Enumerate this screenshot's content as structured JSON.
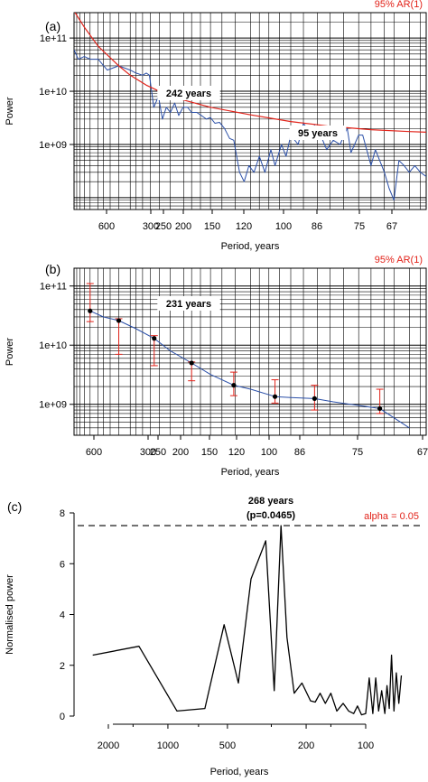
{
  "colors": {
    "spectrum": "#2a4fa8",
    "ar1": "#e2231a",
    "grid": "#000000",
    "errorbar": "#e2231a",
    "point": "#000000",
    "line_c": "#000000"
  },
  "chart_data": [
    {
      "panel_label": "(a)",
      "type": "line",
      "legend": "95% AR(1)",
      "ylabel": "Power",
      "xlabel": "Period, years",
      "y_scale": "log",
      "ylim": [
        60000000.0,
        300000000000.0
      ],
      "x_axis": "frequency (1/period), period labels",
      "x_ticks": [
        "600",
        "300",
        "250",
        "200",
        "150",
        "120",
        "100",
        "86",
        "75",
        "67"
      ],
      "y_ticks": [
        "1e+09",
        "1e+10",
        "1e+11"
      ],
      "annotations": [
        "242 years",
        "95 years"
      ],
      "series": [
        {
          "name": "spectrum",
          "x": [
            1000,
            850,
            700,
            600,
            500,
            420,
            350,
            300,
            280,
            260,
            250,
            242,
            232,
            222,
            214,
            207,
            200,
            193,
            187,
            181,
            175,
            170,
            164,
            159,
            154,
            150,
            146,
            142,
            138,
            134,
            131,
            127,
            124,
            121,
            118,
            115,
            112,
            109,
            107,
            104,
            102,
            100,
            97,
            95,
            93,
            91,
            89,
            87,
            85,
            83,
            81,
            80,
            78,
            77,
            75,
            74,
            72,
            71,
            70,
            69,
            68,
            67,
            66,
            65,
            64
          ],
          "y": [
            60000000000.0,
            40000000000.0,
            45000000000.0,
            40000000000.0,
            40000000000.0,
            25000000000.0,
            30000000000.0,
            25000000000.0,
            22000000000.0,
            20000000000.0,
            22000000000.0,
            20000000000.0,
            5000000000.0,
            8000000000.0,
            3000000000.0,
            5000000000.0,
            4000000000.0,
            6000000000.0,
            3500000000.0,
            5000000000.0,
            5000000000.0,
            4000000000.0,
            4000000000.0,
            3500000000.0,
            3000000000.0,
            3200000000.0,
            2500000000.0,
            2600000000.0,
            2000000000.0,
            1300000000.0,
            1200000000.0,
            300000000.0,
            200000000.0,
            400000000.0,
            300000000.0,
            600000000.0,
            300000000.0,
            800000000.0,
            400000000.0,
            1000000000.0,
            600000000.0,
            1500000000.0,
            1000000000.0,
            2500000000.0,
            1800000000.0,
            2300000000.0,
            1500000000.0,
            800000000.0,
            1200000000.0,
            1000000000.0,
            2000000000.0,
            700000000.0,
            1500000000.0,
            1500000000.0,
            400000000.0,
            800000000.0,
            300000000.0,
            150000000.0,
            90000000.0,
            500000000.0,
            400000000.0,
            300000000.0,
            400000000.0,
            300000000.0,
            250000000.0
          ]
        },
        {
          "name": "95% AR(1)",
          "x": [
            1000,
            700,
            500,
            350,
            300,
            250,
            200,
            150,
            120,
            100,
            86,
            75,
            67,
            64
          ],
          "y": [
            320000000000.0,
            160000000000.0,
            70000000000.0,
            30000000000.0,
            20000000000.0,
            13000000000.0,
            8000000000.0,
            5000000000.0,
            3600000000.0,
            2700000000.0,
            2200000000.0,
            1900000000.0,
            1750000000.0,
            1700000000.0
          ]
        }
      ]
    },
    {
      "panel_label": "(b)",
      "type": "line",
      "legend": "95% AR(1)",
      "ylabel": "Power",
      "xlabel": "Period, years",
      "y_scale": "log",
      "ylim": [
        300000000.0,
        200000000000.0
      ],
      "x_ticks": [
        "600",
        "300",
        "250",
        "200",
        "150",
        "120",
        "100",
        "86",
        "75",
        "67"
      ],
      "y_ticks": [
        "1e+09",
        "1e+10",
        "1e+11"
      ],
      "annotations": [
        "231 years"
      ],
      "points": {
        "x": [
          600,
          350,
          231,
          170,
          131,
          107,
          91,
          73
        ],
        "y": [
          38000000000.0,
          26000000000.0,
          13000000000.0,
          5000000000.0,
          2100000000.0,
          1350000000.0,
          1250000000.0,
          850000000.0
        ],
        "err_lo": [
          25000000000.0,
          7000000000.0,
          4500000000.0,
          2500000000.0,
          1400000000.0,
          1050000000.0,
          800000000.0,
          700000000.0
        ],
        "err_hi": [
          110000000000.0,
          28000000000.0,
          14500000000.0,
          5200000000.0,
          3500000000.0,
          2600000000.0,
          2100000000.0,
          1800000000.0
        ]
      },
      "series": [
        {
          "name": "fit",
          "x": [
            600,
            450,
            350,
            280,
            231,
            200,
            170,
            150,
            131,
            120,
            107,
            100,
            91,
            85,
            73,
            67
          ],
          "y": [
            38000000000.0,
            30000000000.0,
            26000000000.0,
            19000000000.0,
            13000000000.0,
            8000000000.0,
            5000000000.0,
            3200000000.0,
            2100000000.0,
            1800000000.0,
            1350000000.0,
            1300000000.0,
            1250000000.0,
            1100000000.0,
            850000000.0,
            400000000.0
          ]
        }
      ]
    },
    {
      "panel_label": "(c)",
      "type": "line",
      "ylabel": "Normalised power",
      "xlabel": "Period, years",
      "ylim": [
        0,
        8
      ],
      "y_ticks": [
        "0",
        "2",
        "4",
        "6",
        "8"
      ],
      "x_ticks": [
        "2000",
        "1000",
        "500",
        "200",
        "100"
      ],
      "threshold": {
        "value": 7.5,
        "label": "alpha = 0.05"
      },
      "annotation": {
        "line1": "268 years",
        "line2": "(p=0.0465)"
      },
      "series": [
        {
          "name": "",
          "x": [
            2400,
            1400,
            900,
            650,
            520,
            440,
            380,
            320,
            290,
            268,
            250,
            230,
            210,
            190,
            180,
            170,
            160,
            150,
            140,
            130,
            122,
            115,
            110,
            105,
            100,
            96,
            92,
            89,
            86,
            83,
            80,
            78,
            76,
            74,
            72,
            70,
            68,
            66
          ],
          "y": [
            2.4,
            2.75,
            0.2,
            0.3,
            3.6,
            1.3,
            5.4,
            6.9,
            1,
            7.5,
            3.1,
            0.9,
            1.3,
            0.6,
            0.55,
            0.9,
            0.5,
            0.9,
            0.2,
            0.5,
            0.2,
            0.1,
            0.4,
            0.05,
            0.1,
            1.5,
            0.1,
            1.5,
            0.2,
            1,
            0.1,
            1.2,
            0.3,
            2.4,
            0.2,
            1.7,
            0.5,
            1.6
          ]
        }
      ]
    }
  ]
}
